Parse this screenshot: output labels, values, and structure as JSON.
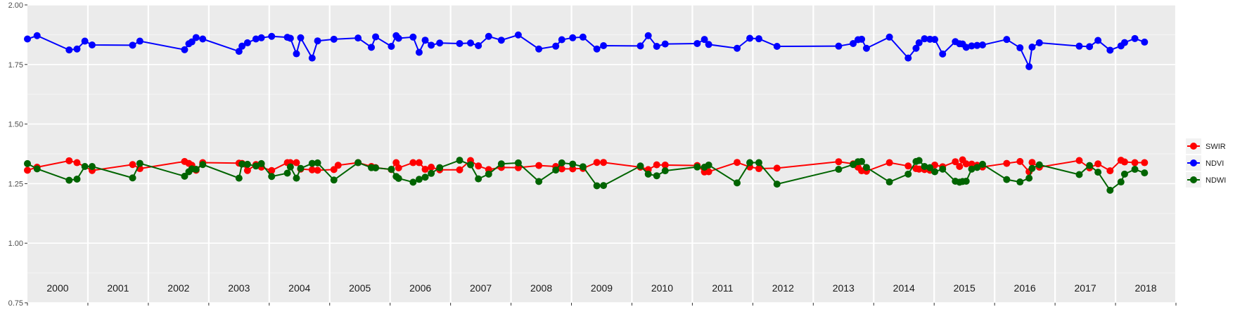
{
  "chart_data": {
    "type": "line",
    "title": "",
    "xlabel": "",
    "ylabel": "",
    "ylim": [
      0.75,
      2.0
    ],
    "xlim": [
      2000.0,
      2019.0
    ],
    "yticks": [
      "0.75",
      "1.00",
      "1.25",
      "1.50",
      "1.75",
      "2.00"
    ],
    "year_labels": [
      "2000",
      "2001",
      "2002",
      "2003",
      "2004",
      "2005",
      "2006",
      "2007",
      "2008",
      "2009",
      "2010",
      "2011",
      "2012",
      "2013",
      "2014",
      "2015",
      "2016",
      "2017",
      "2018"
    ],
    "grid": true,
    "legend_position": "right",
    "series": [
      {
        "name": "SWIR",
        "color": "#ff0000",
        "x": [
          2000.0,
          2000.16,
          2000.69,
          2000.82,
          2001.07,
          2001.74,
          2001.86,
          2002.6,
          2002.67,
          2002.72,
          2002.79,
          2002.9,
          2003.5,
          2003.55,
          2003.64,
          2003.78,
          2003.87,
          2004.04,
          2004.3,
          2004.35,
          2004.45,
          2004.52,
          2004.71,
          2004.8,
          2005.07,
          2005.14,
          2005.47,
          2005.69,
          2005.76,
          2006.02,
          2006.1,
          2006.14,
          2006.38,
          2006.48,
          2006.58,
          2006.68,
          2006.82,
          2007.15,
          2007.33,
          2007.46,
          2007.63,
          2007.84,
          2008.12,
          2008.46,
          2008.74,
          2008.84,
          2009.02,
          2009.19,
          2009.42,
          2009.53,
          2010.14,
          2010.27,
          2010.41,
          2010.55,
          2011.08,
          2011.2,
          2011.27,
          2011.74,
          2011.95,
          2012.1,
          2012.4,
          2013.42,
          2013.66,
          2013.74,
          2013.8,
          2013.88,
          2014.26,
          2014.57,
          2014.7,
          2014.75,
          2014.84,
          2014.93,
          2015.01,
          2015.14,
          2015.35,
          2015.42,
          2015.47,
          2015.53,
          2015.62,
          2015.71,
          2015.8,
          2016.2,
          2016.42,
          2016.57,
          2016.62,
          2016.74,
          2017.4,
          2017.57,
          2017.71,
          2017.91,
          2018.09,
          2018.15,
          2018.32,
          2018.48
        ],
        "y": [
          1.306,
          1.319,
          1.346,
          1.338,
          1.305,
          1.33,
          1.313,
          1.343,
          1.335,
          1.327,
          1.306,
          1.338,
          1.336,
          1.335,
          1.305,
          1.33,
          1.319,
          1.305,
          1.338,
          1.338,
          1.338,
          1.311,
          1.308,
          1.306,
          1.309,
          1.327,
          1.338,
          1.322,
          1.317,
          1.309,
          1.338,
          1.316,
          1.338,
          1.338,
          1.31,
          1.319,
          1.308,
          1.308,
          1.347,
          1.324,
          1.309,
          1.318,
          1.317,
          1.326,
          1.322,
          1.312,
          1.312,
          1.314,
          1.339,
          1.339,
          1.319,
          1.309,
          1.329,
          1.328,
          1.326,
          1.299,
          1.3,
          1.339,
          1.32,
          1.313,
          1.315,
          1.342,
          1.333,
          1.319,
          1.304,
          1.302,
          1.338,
          1.324,
          1.313,
          1.311,
          1.309,
          1.306,
          1.328,
          1.321,
          1.342,
          1.322,
          1.35,
          1.333,
          1.332,
          1.327,
          1.32,
          1.335,
          1.343,
          1.3,
          1.339,
          1.319,
          1.347,
          1.316,
          1.333,
          1.304,
          1.348,
          1.341,
          1.338,
          1.338
        ]
      },
      {
        "name": "NDVI",
        "color": "#0000ff",
        "x": [
          2000.0,
          2000.16,
          2000.69,
          2000.82,
          2000.95,
          2001.07,
          2001.74,
          2001.86,
          2002.6,
          2002.67,
          2002.72,
          2002.79,
          2002.9,
          2003.5,
          2003.55,
          2003.64,
          2003.78,
          2003.87,
          2004.04,
          2004.3,
          2004.35,
          2004.45,
          2004.52,
          2004.71,
          2004.8,
          2005.07,
          2005.47,
          2005.69,
          2005.76,
          2006.02,
          2006.1,
          2006.14,
          2006.38,
          2006.48,
          2006.58,
          2006.68,
          2006.82,
          2007.15,
          2007.33,
          2007.46,
          2007.63,
          2007.84,
          2008.12,
          2008.46,
          2008.74,
          2008.84,
          2009.02,
          2009.19,
          2009.42,
          2009.53,
          2010.14,
          2010.27,
          2010.41,
          2010.55,
          2011.08,
          2011.2,
          2011.27,
          2011.74,
          2011.95,
          2012.1,
          2012.4,
          2013.42,
          2013.66,
          2013.74,
          2013.8,
          2013.88,
          2014.26,
          2014.57,
          2014.7,
          2014.75,
          2014.84,
          2014.93,
          2015.01,
          2015.14,
          2015.35,
          2015.42,
          2015.47,
          2015.53,
          2015.62,
          2015.71,
          2015.8,
          2016.2,
          2016.42,
          2016.57,
          2016.62,
          2016.74,
          2017.4,
          2017.57,
          2017.71,
          2017.91,
          2018.09,
          2018.15,
          2018.32,
          2018.48
        ],
        "y": [
          1.857,
          1.871,
          1.811,
          1.815,
          1.848,
          1.832,
          1.831,
          1.848,
          1.812,
          1.837,
          1.845,
          1.863,
          1.857,
          1.805,
          1.827,
          1.841,
          1.857,
          1.862,
          1.868,
          1.864,
          1.86,
          1.795,
          1.862,
          1.777,
          1.849,
          1.856,
          1.861,
          1.822,
          1.866,
          1.826,
          1.871,
          1.86,
          1.865,
          1.801,
          1.852,
          1.831,
          1.84,
          1.838,
          1.84,
          1.829,
          1.868,
          1.852,
          1.874,
          1.815,
          1.827,
          1.854,
          1.862,
          1.865,
          1.815,
          1.829,
          1.828,
          1.871,
          1.826,
          1.836,
          1.838,
          1.855,
          1.834,
          1.818,
          1.86,
          1.858,
          1.826,
          1.827,
          1.838,
          1.854,
          1.856,
          1.818,
          1.865,
          1.777,
          1.818,
          1.841,
          1.858,
          1.856,
          1.855,
          1.794,
          1.846,
          1.837,
          1.836,
          1.822,
          1.828,
          1.83,
          1.832,
          1.855,
          1.82,
          1.741,
          1.823,
          1.841,
          1.827,
          1.825,
          1.851,
          1.81,
          1.828,
          1.842,
          1.859,
          1.844
        ]
      },
      {
        "name": "NDWI",
        "color": "#006400",
        "x": [
          2000.0,
          2000.16,
          2000.69,
          2000.82,
          2000.95,
          2001.07,
          2001.74,
          2001.86,
          2002.6,
          2002.67,
          2002.72,
          2002.79,
          2002.9,
          2003.5,
          2003.55,
          2003.64,
          2003.78,
          2003.87,
          2004.04,
          2004.3,
          2004.35,
          2004.45,
          2004.52,
          2004.71,
          2004.8,
          2005.07,
          2005.47,
          2005.69,
          2005.76,
          2006.02,
          2006.1,
          2006.14,
          2006.38,
          2006.48,
          2006.58,
          2006.68,
          2006.82,
          2007.15,
          2007.33,
          2007.46,
          2007.63,
          2007.84,
          2008.12,
          2008.46,
          2008.74,
          2008.84,
          2009.02,
          2009.19,
          2009.42,
          2009.53,
          2010.14,
          2010.27,
          2010.41,
          2010.55,
          2011.08,
          2011.2,
          2011.27,
          2011.74,
          2011.95,
          2012.1,
          2012.4,
          2013.42,
          2013.66,
          2013.74,
          2013.8,
          2013.88,
          2014.26,
          2014.57,
          2014.7,
          2014.75,
          2014.84,
          2014.93,
          2015.01,
          2015.14,
          2015.35,
          2015.42,
          2015.47,
          2015.53,
          2015.62,
          2015.71,
          2015.8,
          2016.2,
          2016.42,
          2016.57,
          2016.62,
          2016.74,
          2017.4,
          2017.57,
          2017.71,
          2017.91,
          2018.09,
          2018.15,
          2018.32,
          2018.48
        ],
        "y": [
          1.334,
          1.312,
          1.264,
          1.269,
          1.322,
          1.322,
          1.274,
          1.335,
          1.281,
          1.3,
          1.312,
          1.31,
          1.33,
          1.273,
          1.332,
          1.331,
          1.324,
          1.334,
          1.28,
          1.294,
          1.32,
          1.273,
          1.314,
          1.335,
          1.337,
          1.265,
          1.338,
          1.317,
          1.316,
          1.31,
          1.28,
          1.272,
          1.256,
          1.268,
          1.277,
          1.293,
          1.317,
          1.348,
          1.329,
          1.27,
          1.29,
          1.333,
          1.337,
          1.259,
          1.307,
          1.337,
          1.332,
          1.321,
          1.241,
          1.242,
          1.324,
          1.29,
          1.283,
          1.304,
          1.32,
          1.319,
          1.328,
          1.253,
          1.338,
          1.338,
          1.248,
          1.31,
          1.33,
          1.342,
          1.343,
          1.318,
          1.257,
          1.29,
          1.343,
          1.347,
          1.322,
          1.317,
          1.3,
          1.311,
          1.26,
          1.256,
          1.259,
          1.26,
          1.311,
          1.318,
          1.331,
          1.267,
          1.257,
          1.273,
          1.314,
          1.329,
          1.288,
          1.326,
          1.298,
          1.222,
          1.257,
          1.29,
          1.31,
          1.295
        ]
      }
    ]
  }
}
